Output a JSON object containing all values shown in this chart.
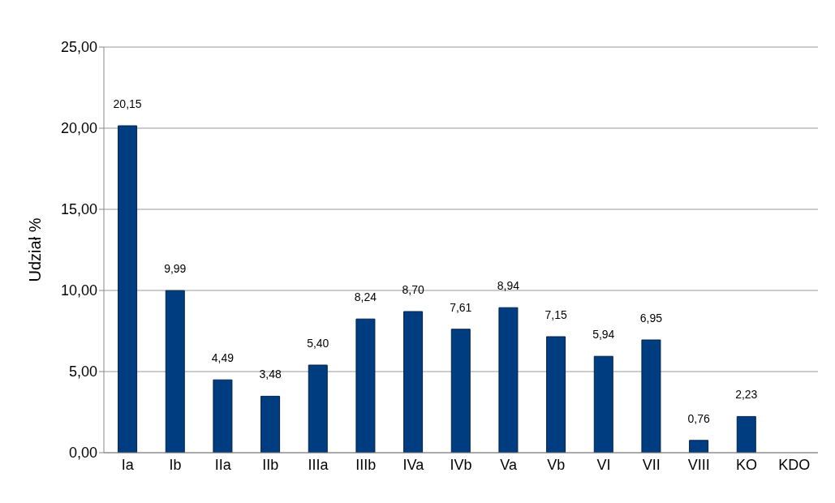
{
  "chart_data": {
    "type": "bar",
    "ylabel": "Udział %",
    "categories": [
      "Ia",
      "Ib",
      "IIa",
      "IIb",
      "IIIa",
      "IIIb",
      "IVa",
      "IVb",
      "Va",
      "Vb",
      "VI",
      "VII",
      "VIII",
      "KO",
      "KDO"
    ],
    "values": [
      20.15,
      9.99,
      4.49,
      3.48,
      5.4,
      8.24,
      8.7,
      7.61,
      8.94,
      7.15,
      5.94,
      6.95,
      0.76,
      2.23,
      null
    ],
    "value_labels": [
      "20,15",
      "9,99",
      "4,49",
      "3,48",
      "5,40",
      "8,24",
      "8,70",
      "7,61",
      "8,94",
      "7,15",
      "5,94",
      "6,95",
      "0,76",
      "2,23",
      null
    ],
    "color": "#003c80",
    "ylim": [
      0,
      25
    ],
    "yticks": [
      {
        "value": 0,
        "label": "0,00"
      },
      {
        "value": 5,
        "label": "5,00"
      },
      {
        "value": 10,
        "label": "10,00"
      },
      {
        "value": 15,
        "label": "15,00"
      },
      {
        "value": 20,
        "label": "20,00"
      },
      {
        "value": 25,
        "label": "25,00"
      }
    ],
    "grid": "y",
    "legend": false
  }
}
